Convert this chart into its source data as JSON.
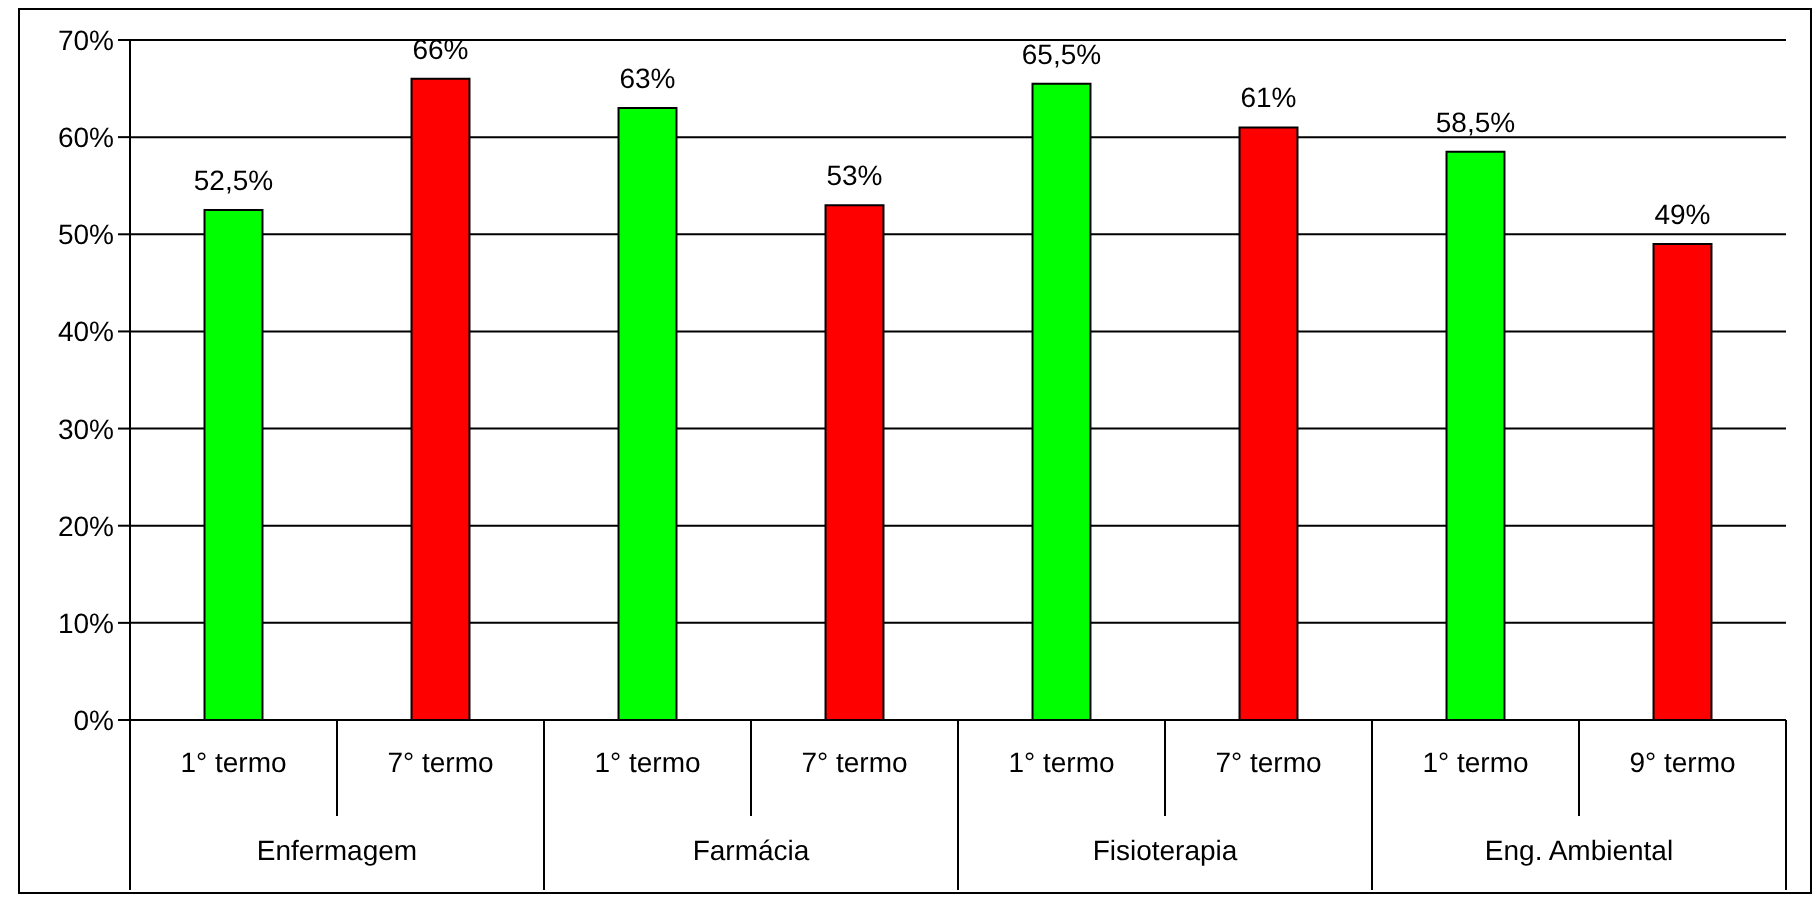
{
  "chart_data": {
    "type": "bar",
    "categories": [
      "1° termo",
      "7° termo",
      "1° termo",
      "7° termo",
      "1° termo",
      "7° termo",
      "1° termo",
      "9° termo"
    ],
    "values": [
      52.5,
      66,
      63,
      53,
      65.5,
      61,
      58.5,
      49
    ],
    "colors": [
      "#00ff00",
      "#ff0000",
      "#00ff00",
      "#ff0000",
      "#00ff00",
      "#ff0000",
      "#00ff00",
      "#ff0000"
    ],
    "annotations": [
      "Enfermagem",
      "Farmácia",
      "Fisioterapia",
      "Eng. Ambiental"
    ],
    "ylim": [
      0,
      70
    ],
    "yticks": [
      {
        "value": 0,
        "label": "0%"
      },
      {
        "value": 10,
        "label": "10%"
      },
      {
        "value": 20,
        "label": "20%"
      },
      {
        "value": 30,
        "label": "30%"
      },
      {
        "value": 40,
        "label": "40%"
      },
      {
        "value": 50,
        "label": "50%"
      },
      {
        "value": 60,
        "label": "60%"
      },
      {
        "value": 70,
        "label": "70%"
      }
    ],
    "value_labels": [
      "52,5%",
      "66%",
      "63%",
      "53%",
      "65,5%",
      "61%",
      "58,5%",
      "49%"
    ],
    "grid": "y"
  }
}
